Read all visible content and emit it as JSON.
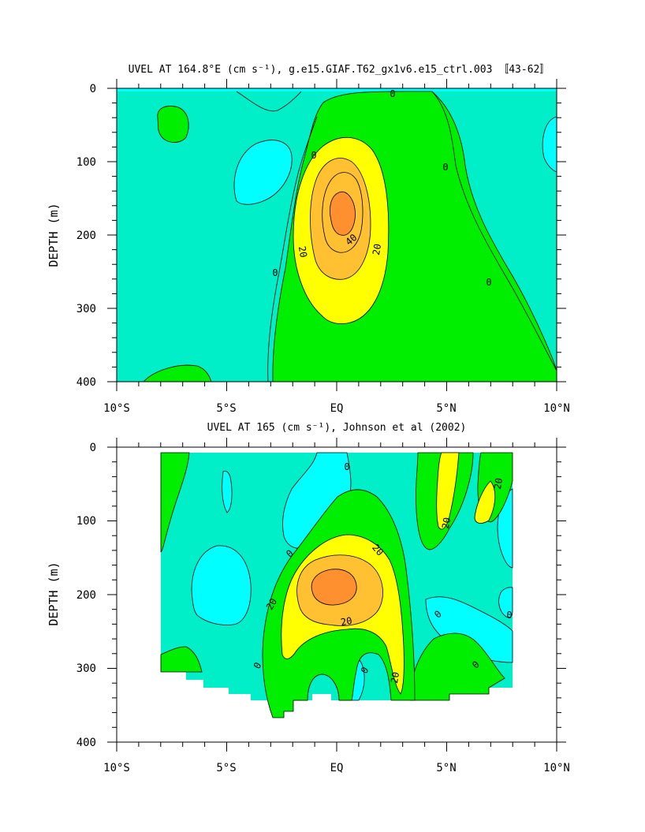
{
  "chart_data": [
    {
      "type": "contour",
      "title": "UVEL AT 164.8°E (cm s⁻¹), g.e15.GIAF.T62_gx1v6.e15_ctrl.003 〚43-62〛",
      "ylabel": "DEPTH (m)",
      "xlabel": "",
      "xlim": [
        -10,
        10
      ],
      "ylim": [
        400,
        0
      ],
      "x_tick_labels": [
        "10°S",
        "5°S",
        "EQ",
        "5°N",
        "10°N"
      ],
      "y_tick_labels": [
        "0",
        "100",
        "200",
        "300",
        "400"
      ],
      "contour_levels": [
        0,
        10,
        20,
        30,
        40,
        50
      ],
      "contour_labels": [
        "0",
        "0",
        "0",
        "0",
        "0",
        "20",
        "40",
        "20"
      ],
      "core_max": {
        "lat": 0,
        "depth_m": 175,
        "value_cm_s": 50
      }
    },
    {
      "type": "contour",
      "title": "UVEL AT 165 (cm s⁻¹), Johnson et al (2002)",
      "ylabel": "DEPTH (m)",
      "xlabel": "",
      "xlim": [
        -10,
        10
      ],
      "ylim": [
        400,
        0
      ],
      "x_tick_labels": [
        "10°S",
        "5°S",
        "EQ",
        "5°N",
        "10°N"
      ],
      "y_tick_labels": [
        "0",
        "100",
        "200",
        "300",
        "400"
      ],
      "contour_levels": [
        0,
        10,
        20,
        30,
        40
      ],
      "contour_labels": [
        "0",
        "20",
        "20",
        "0",
        "20",
        "20",
        "20",
        "0",
        "0",
        "20",
        "0",
        "0",
        "0"
      ],
      "core_max": {
        "lat": -0.2,
        "depth_m": 185,
        "value_cm_s": 40
      }
    }
  ],
  "colors": {
    "negative": "#00ffff",
    "band_0_10": "#00eec8",
    "band_10_20": "#00ee00",
    "band_20_30": "#ffff00",
    "band_30_40": "#ffc032",
    "band_40_plus": "#ff9030"
  }
}
